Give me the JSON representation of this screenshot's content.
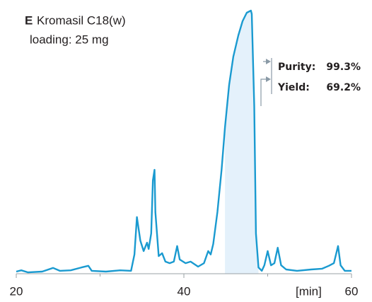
{
  "chart_data": {
    "type": "line",
    "title_letter": "E",
    "title": "Kromasil C18(w)",
    "subtitle": "loading: 25 mg",
    "x_label": "[min]",
    "x": [
      20,
      20.6,
      21.4,
      23.1,
      24.4,
      25.2,
      26.5,
      27.8,
      28.6,
      29.0,
      30.7,
      32.4,
      33.7,
      34.1,
      34.4,
      34.8,
      35.2,
      35.6,
      35.8,
      36.1,
      36.3,
      36.5,
      36.6,
      37.0,
      37.4,
      37.8,
      38.3,
      38.8,
      39.2,
      39.5,
      40.2,
      40.8,
      41.7,
      42.4,
      42.9,
      43.2,
      43.5,
      44.0,
      44.5,
      44.9,
      45.4,
      45.9,
      46.5,
      47.0,
      47.5,
      48.0,
      48.1,
      48.4,
      48.6,
      48.9,
      49.3,
      49.6,
      50.0,
      50.4,
      50.8,
      51.2,
      51.6,
      52.2,
      53.5,
      55.2,
      56.5,
      57.3,
      57.9,
      58.4,
      58.7,
      59.2,
      60.0
    ],
    "series": [
      {
        "color": "#1a9ad0",
        "values": [
          0.8,
          1.3,
          0.5,
          0.8,
          2.2,
          1.1,
          1.3,
          2.4,
          3.0,
          1.1,
          0.8,
          1.3,
          1.1,
          7.3,
          21.5,
          12.6,
          8.6,
          11.8,
          9.4,
          15.3,
          35.5,
          39.5,
          23.4,
          6.7,
          7.8,
          4.6,
          4.0,
          4.6,
          10.5,
          5.4,
          4.0,
          4.6,
          2.7,
          4.0,
          8.6,
          7.3,
          11.3,
          23.4,
          39.5,
          55.6,
          71.8,
          82.5,
          90.6,
          96.0,
          99.2,
          100,
          98.7,
          63.7,
          15.3,
          2.4,
          1.1,
          3.2,
          8.6,
          3.2,
          4.0,
          9.9,
          3.2,
          1.6,
          1.1,
          1.6,
          1.9,
          3.0,
          4.0,
          10.5,
          3.2,
          1.1,
          1.1
        ]
      }
    ],
    "highlight": [
      44.9,
      48.9
    ],
    "highlight_color": "#e4f1fb",
    "xlim": [
      20,
      60
    ],
    "xticks": [
      20,
      40,
      60
    ],
    "xminor_ticks": [
      30,
      50
    ],
    "ylim": [
      0,
      100
    ],
    "annotations": [
      {
        "label": "Purity:",
        "value": "99.3%"
      },
      {
        "label": "Yield:",
        "value": "69.2%"
      }
    ]
  }
}
